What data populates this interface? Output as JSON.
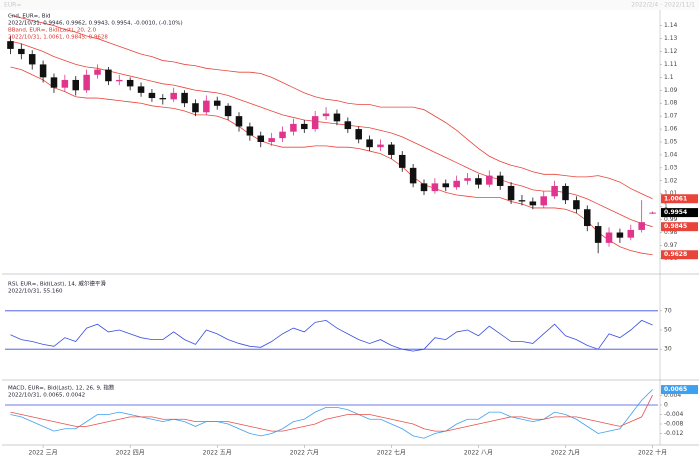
{
  "header": {
    "title": "EUR=",
    "range": "2022/2/4 - 2022/11/1"
  },
  "chart_data": [
    {
      "type": "candlestick",
      "title": "Cnd, EUR=, Bid",
      "subtitle": "2022/10/31, 0.9946, 0.9962, 0.9943, 0.9954, -0.0010, (-0.10%)",
      "categories": [
        null,
        null,
        null,
        "2022 三月",
        null,
        null,
        null,
        null,
        null,
        null,
        null,
        "2022 四月",
        null,
        null,
        null,
        null,
        null,
        null,
        null,
        "2022 五月",
        null,
        null,
        null,
        null,
        null,
        null,
        null,
        "2022 六月",
        null,
        null,
        null,
        null,
        null,
        null,
        null,
        "2022 七月",
        null,
        null,
        null,
        null,
        null,
        null,
        null,
        "2022 八月",
        null,
        null,
        null,
        null,
        null,
        null,
        null,
        "2022 九月",
        null,
        null,
        null,
        null,
        null,
        null,
        null,
        "2022 十月"
      ],
      "open": [
        1.128,
        1.122,
        1.118,
        1.11,
        1.1,
        1.092,
        1.098,
        1.09,
        1.102,
        1.106,
        1.097,
        1.098,
        1.093,
        1.088,
        1.084,
        1.083,
        1.088,
        1.08,
        1.073,
        1.082,
        1.078,
        1.07,
        1.062,
        1.055,
        1.05,
        1.053,
        1.058,
        1.064,
        1.06,
        1.07,
        1.072,
        1.066,
        1.06,
        1.052,
        1.046,
        1.048,
        1.04,
        1.03,
        1.018,
        1.012,
        1.018,
        1.015,
        1.02,
        1.022,
        1.017,
        1.024,
        1.016,
        1.005,
        1.004,
        1.001,
        1.008,
        1.016,
        1.005,
        0.998,
        0.985,
        0.972,
        0.98,
        0.976,
        0.982,
        0.9946
      ],
      "high": [
        1.132,
        1.126,
        1.121,
        1.113,
        1.103,
        1.102,
        1.101,
        1.106,
        1.11,
        1.108,
        1.102,
        1.1,
        1.096,
        1.091,
        1.087,
        1.092,
        1.09,
        1.083,
        1.086,
        1.085,
        1.08,
        1.073,
        1.065,
        1.058,
        1.057,
        1.062,
        1.068,
        1.067,
        1.074,
        1.077,
        1.075,
        1.069,
        1.062,
        1.055,
        1.052,
        1.05,
        1.043,
        1.033,
        1.021,
        1.022,
        1.021,
        1.024,
        1.026,
        1.025,
        1.028,
        1.027,
        1.019,
        1.009,
        1.007,
        1.012,
        1.02,
        1.018,
        1.008,
        1.001,
        0.988,
        0.984,
        0.983,
        0.986,
        1.005,
        0.9962
      ],
      "low": [
        1.118,
        1.114,
        1.106,
        1.096,
        1.088,
        1.089,
        1.086,
        1.088,
        1.099,
        1.094,
        1.094,
        1.09,
        1.085,
        1.081,
        1.079,
        1.081,
        1.077,
        1.07,
        1.071,
        1.075,
        1.067,
        1.058,
        1.051,
        1.046,
        1.047,
        1.05,
        1.055,
        1.057,
        1.058,
        1.067,
        1.063,
        1.057,
        1.049,
        1.043,
        1.043,
        1.037,
        1.027,
        1.015,
        1.009,
        1.01,
        1.012,
        1.013,
        1.017,
        1.014,
        1.015,
        1.013,
        1.002,
        1.001,
        0.998,
        0.999,
        1.006,
        1.002,
        0.995,
        0.981,
        0.964,
        0.969,
        0.972,
        0.974,
        0.98,
        0.9943
      ],
      "close": [
        1.122,
        1.118,
        1.11,
        1.1,
        1.092,
        1.098,
        1.09,
        1.102,
        1.106,
        1.097,
        1.098,
        1.093,
        1.088,
        1.084,
        1.083,
        1.088,
        1.08,
        1.073,
        1.082,
        1.078,
        1.07,
        1.062,
        1.055,
        1.05,
        1.053,
        1.058,
        1.064,
        1.06,
        1.07,
        1.072,
        1.066,
        1.06,
        1.052,
        1.046,
        1.048,
        1.04,
        1.03,
        1.018,
        1.012,
        1.018,
        1.015,
        1.02,
        1.022,
        1.017,
        1.024,
        1.016,
        1.005,
        1.004,
        1.001,
        1.008,
        1.016,
        1.005,
        0.998,
        0.985,
        0.972,
        0.98,
        0.976,
        0.982,
        0.988,
        0.9954
      ],
      "up_color": "#e0358c",
      "down_color": "#111111",
      "overlay": {
        "title": "BBand, EUR=, Bid(Last), 20, 2.0",
        "subtitle": "2022/10/31, 1.0061, 0.9845, 0.9628",
        "color": "#e8443a",
        "upper": [
          1.148,
          1.146,
          1.144,
          1.142,
          1.14,
          1.137,
          1.135,
          1.132,
          1.13,
          1.127,
          1.124,
          1.121,
          1.118,
          1.116,
          1.113,
          1.112,
          1.11,
          1.109,
          1.107,
          1.106,
          1.105,
          1.104,
          1.104,
          1.103,
          1.1,
          1.096,
          1.092,
          1.088,
          1.085,
          1.083,
          1.082,
          1.08,
          1.079,
          1.079,
          1.077,
          1.077,
          1.077,
          1.077,
          1.075,
          1.07,
          1.065,
          1.059,
          1.052,
          1.045,
          1.039,
          1.035,
          1.032,
          1.03,
          1.027,
          1.025,
          1.025,
          1.024,
          1.023,
          1.023,
          1.024,
          1.022,
          1.019,
          1.014,
          1.01,
          1.0061
        ],
        "middle": [
          1.128,
          1.126,
          1.123,
          1.12,
          1.116,
          1.113,
          1.11,
          1.108,
          1.107,
          1.105,
          1.103,
          1.101,
          1.099,
          1.097,
          1.095,
          1.094,
          1.092,
          1.09,
          1.089,
          1.088,
          1.086,
          1.083,
          1.08,
          1.077,
          1.074,
          1.071,
          1.069,
          1.067,
          1.066,
          1.065,
          1.064,
          1.063,
          1.062,
          1.061,
          1.059,
          1.057,
          1.054,
          1.05,
          1.046,
          1.042,
          1.038,
          1.034,
          1.03,
          1.026,
          1.023,
          1.021,
          1.018,
          1.016,
          1.013,
          1.012,
          1.012,
          1.011,
          1.009,
          1.006,
          1.002,
          0.998,
          0.994,
          0.99,
          0.987,
          0.9845
        ],
        "lower": [
          1.108,
          1.106,
          1.102,
          1.098,
          1.092,
          1.089,
          1.085,
          1.084,
          1.084,
          1.083,
          1.082,
          1.081,
          1.08,
          1.078,
          1.077,
          1.076,
          1.074,
          1.071,
          1.071,
          1.07,
          1.067,
          1.062,
          1.056,
          1.051,
          1.048,
          1.046,
          1.046,
          1.046,
          1.047,
          1.047,
          1.046,
          1.046,
          1.045,
          1.043,
          1.041,
          1.037,
          1.031,
          1.023,
          1.017,
          1.014,
          1.011,
          1.009,
          1.008,
          1.007,
          1.007,
          1.007,
          1.004,
          1.002,
          0.999,
          0.999,
          0.999,
          0.998,
          0.995,
          0.989,
          0.98,
          0.974,
          0.969,
          0.966,
          0.964,
          0.9628
        ]
      },
      "ylim": [
        0.951,
        1.149
      ],
      "yticks": [
        1.14,
        1.13,
        1.12,
        1.11,
        1.1,
        1.09,
        1.08,
        1.07,
        1.06,
        1.05,
        1.04,
        1.03,
        1.02,
        1.01,
        1,
        0.99,
        0.98,
        0.97,
        0.96
      ]
    },
    {
      "type": "line",
      "title": "RSI, EUR=, Bid(Last), 14, 威尔德平滑",
      "subtitle": "2022/10/31, 55.160",
      "series": [
        {
          "color": "#3a4fe0",
          "values": [
            45,
            40,
            38,
            35,
            33,
            42,
            38,
            52,
            56,
            48,
            50,
            46,
            42,
            40,
            40,
            48,
            40,
            35,
            50,
            46,
            40,
            36,
            33,
            32,
            38,
            46,
            52,
            48,
            58,
            60,
            52,
            46,
            40,
            36,
            40,
            34,
            30,
            28,
            30,
            42,
            40,
            48,
            50,
            44,
            54,
            46,
            38,
            38,
            36,
            46,
            56,
            44,
            40,
            34,
            30,
            46,
            42,
            50,
            60,
            55.16
          ]
        }
      ],
      "levels": [
        70,
        30
      ],
      "level_color": "#3a4fe0",
      "ylim": [
        0,
        100
      ],
      "yticks": [
        70,
        50,
        30
      ]
    },
    {
      "type": "line",
      "title": "MACD, EUR=, Bid(Last), 12, 26, 9, 指数",
      "subtitle": "2022/10/31, 0.0065, 0.0042",
      "series": [
        {
          "color": "#3da0f0",
          "values": [
            -0.004,
            -0.005,
            -0.007,
            -0.009,
            -0.011,
            -0.01,
            -0.01,
            -0.007,
            -0.004,
            -0.004,
            -0.003,
            -0.004,
            -0.005,
            -0.006,
            -0.007,
            -0.006,
            -0.007,
            -0.009,
            -0.007,
            -0.007,
            -0.008,
            -0.01,
            -0.012,
            -0.013,
            -0.012,
            -0.01,
            -0.007,
            -0.006,
            -0.003,
            -0.001,
            -0.001,
            -0.002,
            -0.004,
            -0.006,
            -0.006,
            -0.008,
            -0.01,
            -0.013,
            -0.014,
            -0.012,
            -0.011,
            -0.008,
            -0.006,
            -0.006,
            -0.003,
            -0.003,
            -0.005,
            -0.006,
            -0.007,
            -0.006,
            -0.003,
            -0.004,
            -0.006,
            -0.009,
            -0.012,
            -0.011,
            -0.01,
            -0.004,
            0.002,
            0.0065
          ]
        },
        {
          "color": "#e8504a",
          "values": [
            -0.003,
            -0.004,
            -0.005,
            -0.006,
            -0.007,
            -0.008,
            -0.009,
            -0.009,
            -0.008,
            -0.007,
            -0.006,
            -0.005,
            -0.005,
            -0.005,
            -0.006,
            -0.006,
            -0.006,
            -0.007,
            -0.007,
            -0.007,
            -0.007,
            -0.008,
            -0.009,
            -0.01,
            -0.011,
            -0.011,
            -0.01,
            -0.009,
            -0.008,
            -0.006,
            -0.005,
            -0.004,
            -0.004,
            -0.004,
            -0.005,
            -0.006,
            -0.007,
            -0.008,
            -0.01,
            -0.011,
            -0.011,
            -0.01,
            -0.009,
            -0.008,
            -0.007,
            -0.006,
            -0.005,
            -0.005,
            -0.006,
            -0.006,
            -0.005,
            -0.005,
            -0.005,
            -0.006,
            -0.007,
            -0.008,
            -0.009,
            -0.007,
            -0.005,
            0.0042
          ]
        }
      ],
      "ylim": [
        -0.016,
        0.008
      ],
      "yticks": [
        0.004,
        0,
        -0.004,
        -0.008,
        -0.012
      ]
    }
  ]
}
